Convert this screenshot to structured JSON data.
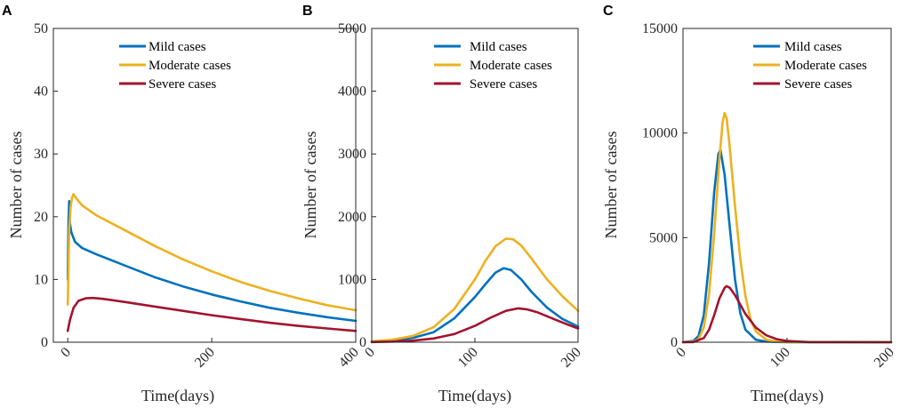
{
  "colors": {
    "mild": "#0072BD",
    "moderate": "#EDB120",
    "severe": "#A2142F",
    "axis": "#262626"
  },
  "chart_data": [
    {
      "panel": "A",
      "type": "line",
      "xlabel": "Time(days)",
      "ylabel": "Number of cases",
      "xlim": [
        -20,
        400
      ],
      "ylim": [
        0,
        50
      ],
      "xticks": [
        "0",
        "200",
        "400"
      ],
      "yticks": [
        "0",
        "10",
        "20",
        "30",
        "40",
        "50"
      ],
      "legend": "top-right",
      "series": [
        {
          "name": "Mild cases",
          "color_key": "mild",
          "points": [
            [
              0,
              10
            ],
            [
              1,
              19
            ],
            [
              2,
              22.5
            ],
            [
              3,
              19
            ],
            [
              5,
              17.5
            ],
            [
              10,
              16
            ],
            [
              20,
              15
            ],
            [
              40,
              14
            ],
            [
              80,
              12.2
            ],
            [
              120,
              10.4
            ],
            [
              160,
              8.9
            ],
            [
              200,
              7.6
            ],
            [
              240,
              6.5
            ],
            [
              280,
              5.5
            ],
            [
              320,
              4.7
            ],
            [
              360,
              4
            ],
            [
              400,
              3.4
            ]
          ]
        },
        {
          "name": "Moderate cases",
          "color_key": "moderate",
          "points": [
            [
              0,
              6
            ],
            [
              1,
              12
            ],
            [
              2,
              18
            ],
            [
              4,
              21.5
            ],
            [
              6,
              23
            ],
            [
              8,
              23.6
            ],
            [
              12,
              22.9
            ],
            [
              20,
              21.8
            ],
            [
              40,
              20.2
            ],
            [
              80,
              17.8
            ],
            [
              120,
              15.4
            ],
            [
              160,
              13.2
            ],
            [
              200,
              11.3
            ],
            [
              240,
              9.6
            ],
            [
              280,
              8.2
            ],
            [
              320,
              7
            ],
            [
              360,
              5.9
            ],
            [
              400,
              5.1
            ]
          ]
        },
        {
          "name": "Severe cases",
          "color_key": "severe",
          "points": [
            [
              0,
              1.8
            ],
            [
              3,
              3.5
            ],
            [
              8,
              5.5
            ],
            [
              15,
              6.6
            ],
            [
              25,
              7
            ],
            [
              35,
              7.05
            ],
            [
              50,
              6.9
            ],
            [
              80,
              6.4
            ],
            [
              120,
              5.7
            ],
            [
              160,
              5
            ],
            [
              200,
              4.3
            ],
            [
              240,
              3.7
            ],
            [
              280,
              3.1
            ],
            [
              320,
              2.6
            ],
            [
              360,
              2.2
            ],
            [
              400,
              1.8
            ]
          ]
        }
      ]
    },
    {
      "panel": "B",
      "type": "line",
      "xlabel": "Time(days)",
      "ylabel": "Number of cases",
      "xlim": [
        0,
        200
      ],
      "ylim": [
        0,
        5000
      ],
      "xticks": [
        "0",
        "100",
        "200"
      ],
      "yticks": [
        "0",
        "1000",
        "2000",
        "3000",
        "4000",
        "5000"
      ],
      "legend": "top-right",
      "series": [
        {
          "name": "Mild cases",
          "color_key": "mild",
          "points": [
            [
              0,
              10
            ],
            [
              20,
              30
            ],
            [
              40,
              70
            ],
            [
              60,
              160
            ],
            [
              80,
              380
            ],
            [
              100,
              720
            ],
            [
              110,
              920
            ],
            [
              120,
              1110
            ],
            [
              128,
              1180
            ],
            [
              135,
              1150
            ],
            [
              145,
              1000
            ],
            [
              155,
              800
            ],
            [
              170,
              550
            ],
            [
              185,
              370
            ],
            [
              200,
              250
            ]
          ]
        },
        {
          "name": "Moderate cases",
          "color_key": "moderate",
          "points": [
            [
              0,
              15
            ],
            [
              20,
              40
            ],
            [
              40,
              100
            ],
            [
              60,
              240
            ],
            [
              80,
              530
            ],
            [
              100,
              1000
            ],
            [
              110,
              1290
            ],
            [
              120,
              1530
            ],
            [
              130,
              1650
            ],
            [
              137,
              1640
            ],
            [
              145,
              1540
            ],
            [
              155,
              1330
            ],
            [
              170,
              1000
            ],
            [
              185,
              730
            ],
            [
              200,
              500
            ]
          ]
        },
        {
          "name": "Severe cases",
          "color_key": "severe",
          "points": [
            [
              0,
              3
            ],
            [
              20,
              10
            ],
            [
              40,
              25
            ],
            [
              60,
              60
            ],
            [
              80,
              130
            ],
            [
              100,
              260
            ],
            [
              115,
              390
            ],
            [
              130,
              500
            ],
            [
              142,
              540
            ],
            [
              150,
              525
            ],
            [
              160,
              480
            ],
            [
              175,
              380
            ],
            [
              190,
              280
            ],
            [
              200,
              220
            ]
          ]
        }
      ]
    },
    {
      "panel": "C",
      "type": "line",
      "xlabel": "Time(days)",
      "ylabel": "Number of cases",
      "xlim": [
        0,
        200
      ],
      "ylim": [
        0,
        15000
      ],
      "xticks": [
        "0",
        "100",
        "200"
      ],
      "yticks": [
        "0",
        "5000",
        "10000",
        "15000"
      ],
      "legend": "top-right",
      "series": [
        {
          "name": "Mild cases",
          "color_key": "mild",
          "points": [
            [
              0,
              5
            ],
            [
              10,
              60
            ],
            [
              15,
              300
            ],
            [
              20,
              1300
            ],
            [
              25,
              3800
            ],
            [
              30,
              7200
            ],
            [
              34,
              9000
            ],
            [
              36,
              9200
            ],
            [
              40,
              8000
            ],
            [
              45,
              5500
            ],
            [
              50,
              3000
            ],
            [
              55,
              1400
            ],
            [
              60,
              600
            ],
            [
              70,
              120
            ],
            [
              80,
              30
            ],
            [
              100,
              3
            ],
            [
              200,
              0
            ]
          ]
        },
        {
          "name": "Moderate cases",
          "color_key": "moderate",
          "points": [
            [
              0,
              3
            ],
            [
              10,
              30
            ],
            [
              15,
              150
            ],
            [
              20,
              700
            ],
            [
              25,
              2300
            ],
            [
              30,
              5200
            ],
            [
              35,
              8800
            ],
            [
              38,
              10500
            ],
            [
              40,
              10950
            ],
            [
              42,
              10700
            ],
            [
              45,
              9300
            ],
            [
              50,
              6500
            ],
            [
              55,
              4000
            ],
            [
              60,
              2200
            ],
            [
              65,
              1100
            ],
            [
              70,
              520
            ],
            [
              80,
              120
            ],
            [
              90,
              30
            ],
            [
              100,
              8
            ],
            [
              200,
              0
            ]
          ]
        },
        {
          "name": "Severe cases",
          "color_key": "severe",
          "points": [
            [
              0,
              1
            ],
            [
              10,
              10
            ],
            [
              20,
              200
            ],
            [
              25,
              600
            ],
            [
              30,
              1300
            ],
            [
              35,
              2100
            ],
            [
              40,
              2600
            ],
            [
              42,
              2680
            ],
            [
              45,
              2600
            ],
            [
              50,
              2250
            ],
            [
              55,
              1800
            ],
            [
              60,
              1350
            ],
            [
              70,
              700
            ],
            [
              80,
              330
            ],
            [
              90,
              150
            ],
            [
              100,
              60
            ],
            [
              120,
              10
            ],
            [
              200,
              0
            ]
          ]
        }
      ]
    }
  ]
}
